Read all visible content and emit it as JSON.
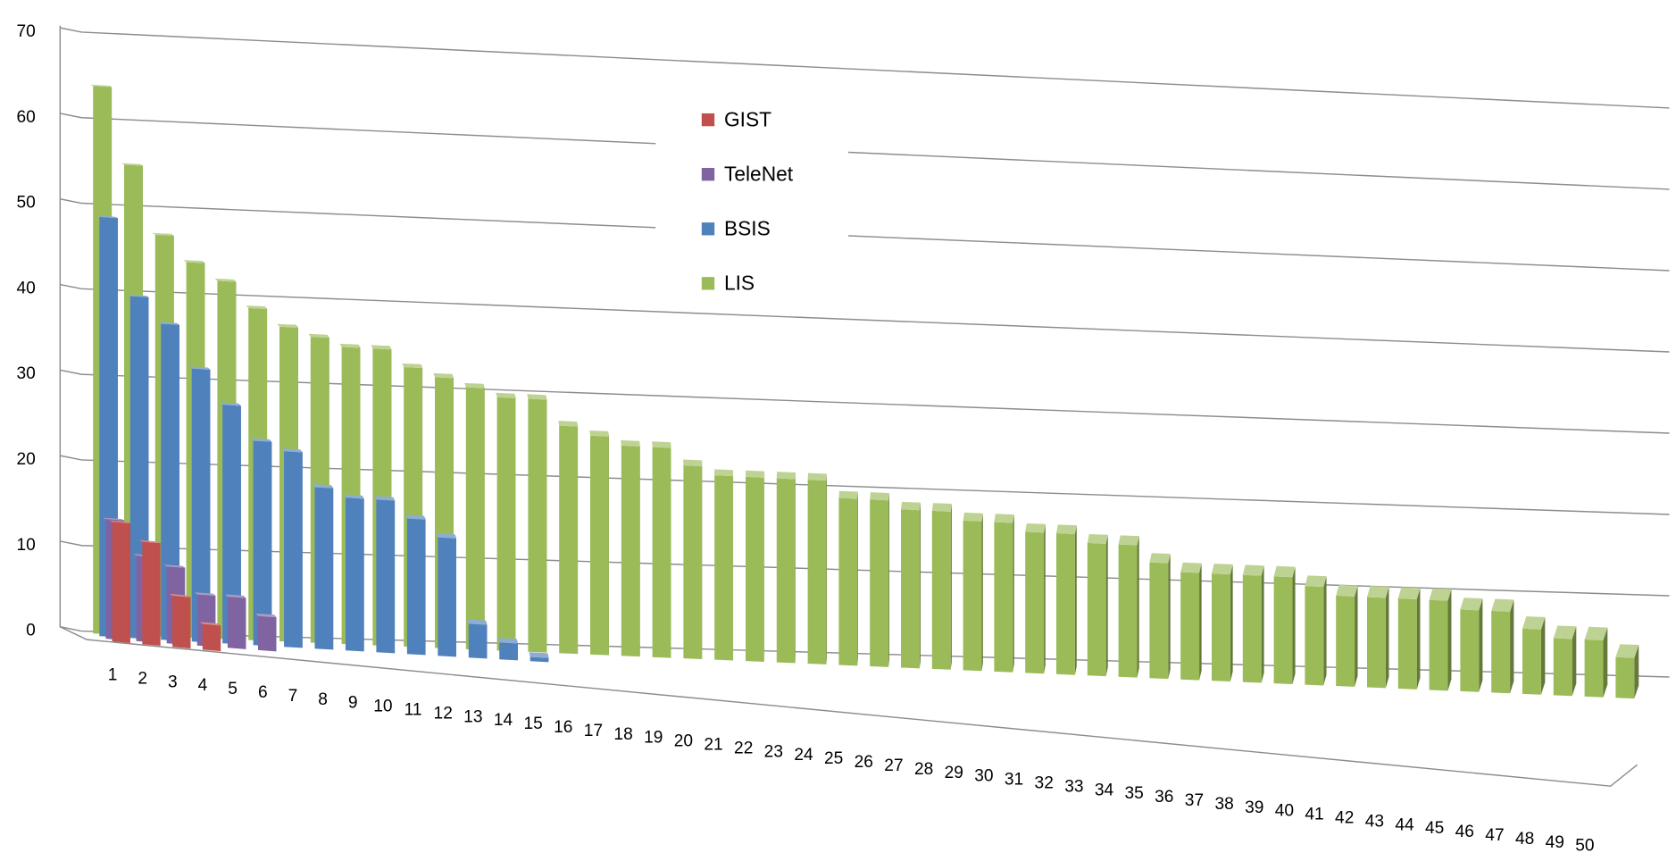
{
  "chart_data": {
    "type": "bar3d",
    "categories": [
      "1",
      "2",
      "3",
      "4",
      "5",
      "6",
      "7",
      "8",
      "9",
      "10",
      "11",
      "12",
      "13",
      "14",
      "15",
      "16",
      "17",
      "18",
      "19",
      "20",
      "21",
      "22",
      "23",
      "24",
      "25",
      "26",
      "27",
      "28",
      "29",
      "30",
      "31",
      "32",
      "33",
      "34",
      "35",
      "36",
      "37",
      "38",
      "39",
      "40",
      "41",
      "42",
      "43",
      "44",
      "45",
      "46",
      "47",
      "48",
      "49",
      "50"
    ],
    "series": [
      {
        "name": "GIST",
        "color": "#c0504d",
        "values": [
          14,
          12,
          6,
          3,
          null,
          null,
          null,
          null,
          null,
          null,
          null,
          null,
          null,
          null,
          null,
          null,
          null,
          null,
          null,
          null,
          null,
          null,
          null,
          null,
          null,
          null,
          null,
          null,
          null,
          null,
          null,
          null,
          null,
          null,
          null,
          null,
          null,
          null,
          null,
          null,
          null,
          null,
          null,
          null,
          null,
          null,
          null,
          null,
          null,
          null
        ]
      },
      {
        "name": "TeleNet",
        "color": "#8064a2",
        "values": [
          14,
          10,
          9,
          6,
          6,
          4,
          null,
          null,
          null,
          null,
          null,
          null,
          null,
          null,
          null,
          null,
          null,
          null,
          null,
          null,
          null,
          null,
          null,
          null,
          null,
          null,
          null,
          null,
          null,
          null,
          null,
          null,
          null,
          null,
          null,
          null,
          null,
          null,
          null,
          null,
          null,
          null,
          null,
          null,
          null,
          null,
          null,
          null,
          null,
          null
        ]
      },
      {
        "name": "BSIS",
        "color": "#4f81bd",
        "values": [
          49,
          40,
          37,
          32,
          28,
          24,
          23,
          19,
          18,
          18,
          16,
          14,
          4,
          2,
          0.5,
          null,
          null,
          null,
          null,
          null,
          null,
          null,
          null,
          null,
          null,
          null,
          null,
          null,
          null,
          null,
          null,
          null,
          null,
          null,
          null,
          null,
          null,
          null,
          null,
          null,
          null,
          null,
          null,
          null,
          null,
          null,
          null,
          null,
          null,
          null
        ]
      },
      {
        "name": "LIS",
        "color": "#9bbb59",
        "values": [
          64,
          55,
          47,
          44,
          42,
          39,
          37,
          36,
          35,
          35,
          33,
          32,
          31,
          30,
          30,
          27,
          26,
          25,
          25,
          23,
          22,
          22,
          22,
          22,
          20,
          20,
          19,
          19,
          18,
          18,
          17,
          17,
          16,
          16,
          14,
          13,
          13,
          13,
          13,
          12,
          11,
          11,
          11,
          11,
          10,
          10,
          8,
          7,
          7,
          5
        ]
      }
    ],
    "ylim": [
      0,
      70
    ],
    "yticks": [
      0,
      10,
      20,
      30,
      40,
      50,
      60,
      70
    ],
    "grid": true
  }
}
